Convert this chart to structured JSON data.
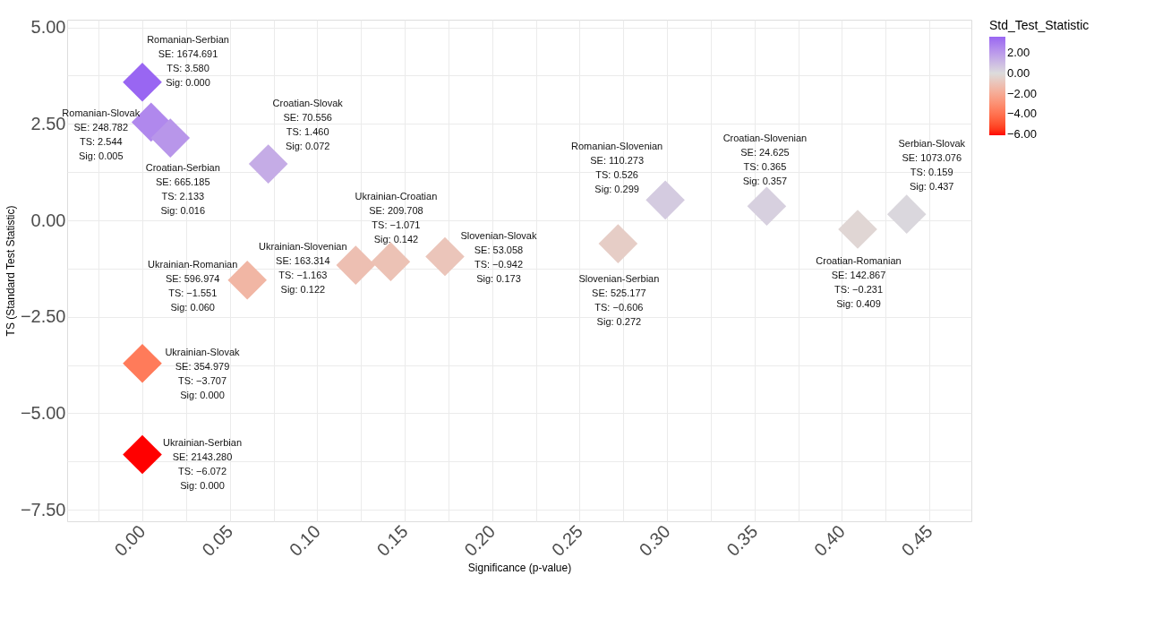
{
  "chart_data": {
    "type": "scatter",
    "xlabel": "Significance (p-value)",
    "ylabel": "TS (Standard Test Statistic)",
    "clabel": "Std_Test_Statistic",
    "marker": "diamond",
    "grid": true,
    "x": [
      0.0,
      0.005,
      0.016,
      0.072,
      0.142,
      0.173,
      0.06,
      0.122,
      0.0,
      0.0,
      0.299,
      0.357,
      0.437,
      0.272,
      0.409
    ],
    "values": [
      3.58,
      2.544,
      2.133,
      1.46,
      -1.071,
      -0.942,
      -1.551,
      -1.163,
      -3.707,
      -6.072,
      0.526,
      0.365,
      0.159,
      -0.606,
      -0.231
    ],
    "cvalues": [
      3.58,
      2.544,
      2.133,
      1.46,
      -1.071,
      -0.942,
      -1.551,
      -1.163,
      -3.707,
      -6.072,
      0.526,
      0.365,
      0.159,
      -0.606,
      -0.231
    ],
    "clim": [
      -6.072,
      3.58
    ],
    "cticks": [
      {
        "value": 2,
        "label": "2.00"
      },
      {
        "value": 0,
        "label": "0.00"
      },
      {
        "value": -2,
        "label": "−2.00"
      },
      {
        "value": -4,
        "label": "−4.00"
      },
      {
        "value": -6,
        "label": "−6.00"
      }
    ],
    "xlim": [
      -0.043,
      0.474
    ],
    "xticks": [
      {
        "value": -0.025,
        "label": null
      },
      {
        "value": 0,
        "label": "0.00"
      },
      {
        "value": 0.025,
        "label": null
      },
      {
        "value": 0.05,
        "label": "0.05"
      },
      {
        "value": 0.075,
        "label": null
      },
      {
        "value": 0.1,
        "label": "0.10"
      },
      {
        "value": 0.125,
        "label": null
      },
      {
        "value": 0.15,
        "label": "0.15"
      },
      {
        "value": 0.175,
        "label": null
      },
      {
        "value": 0.2,
        "label": "0.20"
      },
      {
        "value": 0.225,
        "label": null
      },
      {
        "value": 0.25,
        "label": "0.25"
      },
      {
        "value": 0.275,
        "label": null
      },
      {
        "value": 0.3,
        "label": "0.30"
      },
      {
        "value": 0.325,
        "label": null
      },
      {
        "value": 0.35,
        "label": "0.35"
      },
      {
        "value": 0.375,
        "label": null
      },
      {
        "value": 0.4,
        "label": "0.40"
      },
      {
        "value": 0.425,
        "label": null
      },
      {
        "value": 0.45,
        "label": "0.45"
      }
    ],
    "ylim": [
      -7.8,
      5.2
    ],
    "yticks": [
      {
        "value": -7.5,
        "label": "−7.50"
      },
      {
        "value": -6.25,
        "label": null
      },
      {
        "value": -5,
        "label": "−5.00"
      },
      {
        "value": -3.75,
        "label": null
      },
      {
        "value": -2.5,
        "label": "−2.50"
      },
      {
        "value": -1.25,
        "label": null
      },
      {
        "value": 0,
        "label": "0.00"
      },
      {
        "value": 1.25,
        "label": null
      },
      {
        "value": 2.5,
        "label": "2.50"
      },
      {
        "value": 3.75,
        "label": null
      },
      {
        "value": 5,
        "label": "5.00"
      }
    ],
    "annotations": [
      {
        "text": "Romanian-Serbian\nSE: 1674.691\nTS: 3.580\nSig: 0.000",
        "x": 0.0,
        "y": 3.58
      },
      {
        "text": "Romanian-Slovak\nSE: 248.782\nTS: 2.544\nSig: 0.005",
        "x": 0.005,
        "y": 2.544
      },
      {
        "text": "Croatian-Serbian\nSE: 665.185\nTS: 2.133\nSig: 0.016",
        "x": 0.016,
        "y": 2.133
      },
      {
        "text": "Croatian-Slovak\nSE: 70.556\nTS: 1.460\nSig: 0.072",
        "x": 0.072,
        "y": 1.46
      },
      {
        "text": "Ukrainian-Croatian\nSE: 209.708\nTS: −1.071\nSig: 0.142",
        "x": 0.142,
        "y": -1.071
      },
      {
        "text": "Slovenian-Slovak\nSE: 53.058\nTS: −0.942\nSig: 0.173",
        "x": 0.173,
        "y": -0.942
      },
      {
        "text": "Ukrainian-Romanian\nSE: 596.974\nTS: −1.551\nSig: 0.060",
        "x": 0.06,
        "y": -1.551
      },
      {
        "text": "Ukrainian-Slovenian\nSE: 163.314\nTS: −1.163\nSig: 0.122",
        "x": 0.122,
        "y": -1.163
      },
      {
        "text": "Ukrainian-Slovak\nSE: 354.979\nTS: −3.707\nSig: 0.000",
        "x": 0.0,
        "y": -3.707
      },
      {
        "text": "Ukrainian-Serbian\nSE: 2143.280\nTS: −6.072\nSig: 0.000",
        "x": 0.0,
        "y": -6.072
      },
      {
        "text": "Romanian-Slovenian\nSE: 110.273\nTS: 0.526\nSig: 0.299",
        "x": 0.299,
        "y": 0.526
      },
      {
        "text": "Croatian-Slovenian\nSE: 24.625\nTS: 0.365\nSig: 0.357",
        "x": 0.357,
        "y": 0.365
      },
      {
        "text": "Serbian-Slovak\nSE: 1073.076\nTS: 0.159\nSig: 0.437",
        "x": 0.437,
        "y": 0.159
      },
      {
        "text": "Slovenian-Serbian\nSE: 525.177\nTS: −0.606\nSig: 0.272",
        "x": 0.272,
        "y": -0.606
      },
      {
        "text": "Croatian-Romanian\nSE: 142.867\nTS: −0.231\nSig: 0.409",
        "x": 0.409,
        "y": -0.231
      }
    ]
  }
}
